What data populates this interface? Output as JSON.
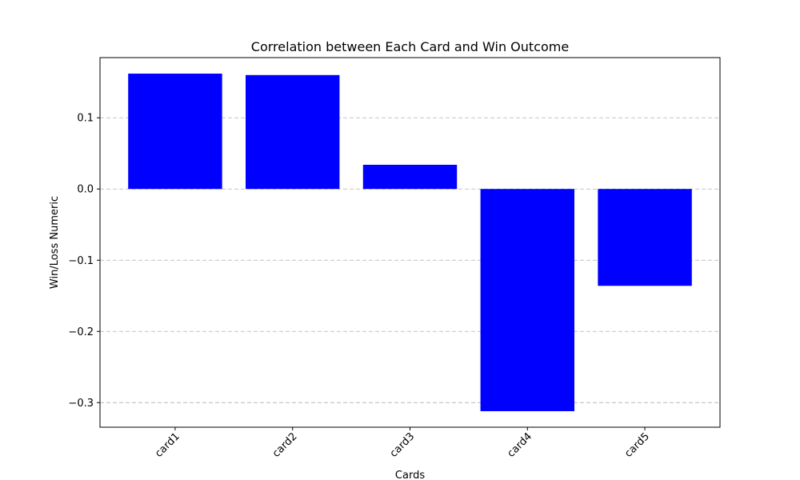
{
  "chart_data": {
    "type": "bar",
    "title": "Correlation between Each Card and Win Outcome",
    "xlabel": "Cards",
    "ylabel": "Win/Loss Numeric",
    "categories": [
      "card1",
      "card2",
      "card3",
      "card4",
      "card5"
    ],
    "values": [
      0.162,
      0.16,
      0.034,
      -0.312,
      -0.136
    ],
    "yticks": [
      0.1,
      0.0,
      -0.1,
      -0.2,
      -0.3
    ],
    "ytick_labels": [
      "0.1",
      "0.0",
      "−0.1",
      "−0.2",
      "−0.3"
    ],
    "ylim": [
      -0.3345,
      0.1845
    ],
    "bar_color": "#0000ff",
    "grid": "y-dashed",
    "xtick_rotation": 45
  }
}
